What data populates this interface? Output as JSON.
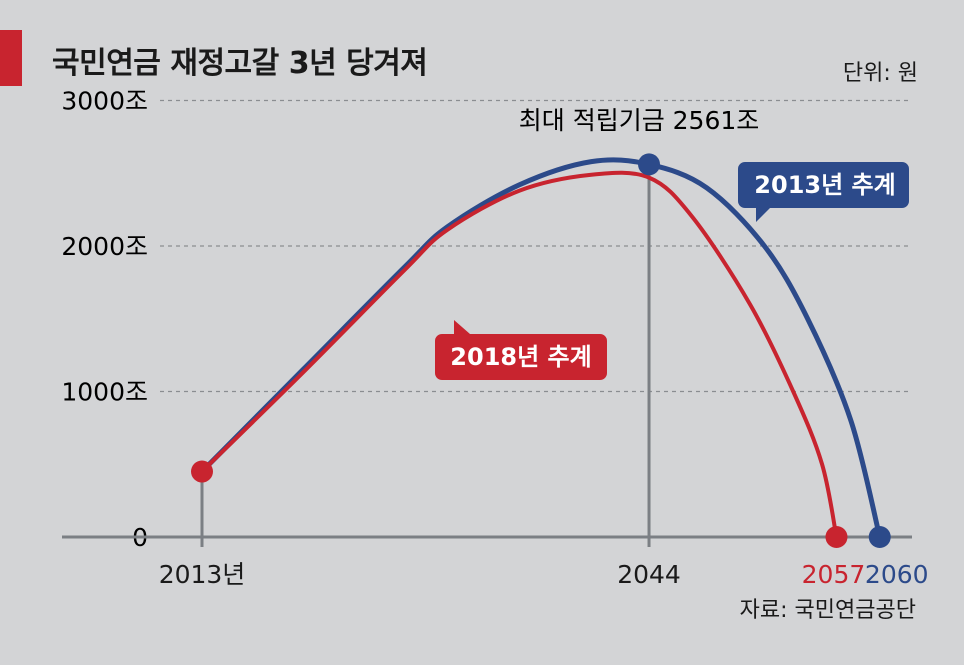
{
  "header": {
    "title": "국민연금 재정고갈 3년 당겨져",
    "unit": "단위: 원",
    "source": "자료: 국민연금공단"
  },
  "colors": {
    "background": "#d3d4d6",
    "accent": "#c8242f",
    "series_2013": "#2c4a8a",
    "series_2018": "#c8242f",
    "axis": "#7b7f84",
    "grid": "#8a8d91"
  },
  "chart_data": {
    "type": "line",
    "title": "국민연금 재정고갈 3년 당겨져",
    "ylim": [
      0,
      3000
    ],
    "y_ticks": [
      {
        "value": 0,
        "label": "0"
      },
      {
        "value": 1000,
        "label": "1000조"
      },
      {
        "value": 2000,
        "label": "2000조"
      },
      {
        "value": 3000,
        "label": "3000조"
      }
    ],
    "x_ticks": [
      {
        "year": 2013,
        "label": "2013년"
      },
      {
        "year": 2044,
        "label": "2044"
      },
      {
        "year": 2057,
        "label": "2057"
      },
      {
        "year": 2060,
        "label": "2060"
      }
    ],
    "grid": true,
    "series": [
      {
        "name": "2013년 추계",
        "color": "#2c4a8a",
        "points": [
          [
            2013,
            450
          ],
          [
            2020,
            1150
          ],
          [
            2027,
            1850
          ],
          [
            2030,
            2130
          ],
          [
            2035,
            2420
          ],
          [
            2040,
            2580
          ],
          [
            2044,
            2561
          ],
          [
            2048,
            2400
          ],
          [
            2052,
            2000
          ],
          [
            2055,
            1500
          ],
          [
            2058,
            800
          ],
          [
            2060,
            0
          ]
        ]
      },
      {
        "name": "2018년 추계",
        "color": "#c8242f",
        "points": [
          [
            2013,
            450
          ],
          [
            2020,
            1130
          ],
          [
            2027,
            1830
          ],
          [
            2030,
            2110
          ],
          [
            2035,
            2380
          ],
          [
            2040,
            2490
          ],
          [
            2044,
            2470
          ],
          [
            2047,
            2200
          ],
          [
            2051,
            1600
          ],
          [
            2054,
            1000
          ],
          [
            2056,
            500
          ],
          [
            2057,
            0
          ]
        ]
      }
    ],
    "annotations": {
      "peak_label": "최대 적립기금 2561조",
      "peak": [
        2044,
        2561
      ],
      "series_2013_label": "2013년 추계",
      "series_2018_label": "2018년 추계"
    }
  }
}
